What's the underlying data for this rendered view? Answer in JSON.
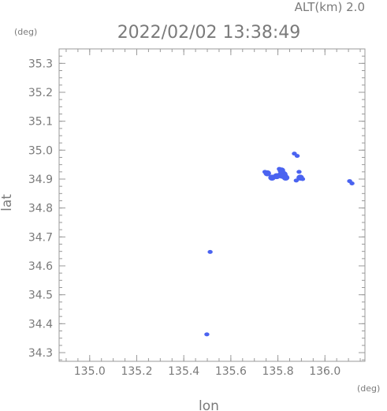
{
  "header": {
    "altitude_label": "ALT(km)  2.0",
    "datetime": "2022/02/02 13:38:49"
  },
  "chart_data": {
    "type": "scatter",
    "title": "2022/02/02 13:38:49",
    "xlabel": "lon",
    "ylabel": "lat",
    "x_unit": "(deg)",
    "y_unit": "(deg)",
    "xlim": [
      134.87,
      136.17
    ],
    "ylim": [
      34.27,
      35.35
    ],
    "x_ticks": [
      135.0,
      135.2,
      135.4,
      135.6,
      135.8,
      136.0
    ],
    "x_tick_labels": [
      "135.0",
      "135.2",
      "135.4",
      "135.6",
      "135.8",
      "136.0"
    ],
    "y_ticks": [
      34.3,
      34.4,
      34.5,
      34.6,
      34.7,
      34.8,
      34.9,
      35.0,
      35.1,
      35.2,
      35.3
    ],
    "y_tick_labels": [
      "34.3",
      "34.4",
      "34.5",
      "34.6",
      "34.7",
      "34.8",
      "34.9",
      "35.0",
      "35.1",
      "35.2",
      "35.3"
    ],
    "x_minor_step": 0.05,
    "y_minor_step": 0.025,
    "grid": false,
    "marker_color": "#4a63f0",
    "echoes": [
      {
        "lon": 135.82,
        "lat": 34.915,
        "size": 3
      },
      {
        "lon": 135.833,
        "lat": 34.905,
        "size": 2
      },
      {
        "lon": 135.815,
        "lat": 34.93,
        "size": 2
      },
      {
        "lon": 135.795,
        "lat": 34.91,
        "size": 2
      },
      {
        "lon": 135.775,
        "lat": 34.905,
        "size": 2
      },
      {
        "lon": 135.755,
        "lat": 34.92,
        "size": 2
      },
      {
        "lon": 135.745,
        "lat": 34.925,
        "size": 1
      },
      {
        "lon": 135.806,
        "lat": 34.935,
        "size": 1
      },
      {
        "lon": 135.89,
        "lat": 34.925,
        "size": 1
      },
      {
        "lon": 135.895,
        "lat": 34.905,
        "size": 2
      },
      {
        "lon": 135.878,
        "lat": 34.895,
        "size": 1
      },
      {
        "lon": 135.905,
        "lat": 34.9,
        "size": 1
      },
      {
        "lon": 135.882,
        "lat": 34.98,
        "size": 1
      },
      {
        "lon": 135.87,
        "lat": 34.988,
        "size": 1
      },
      {
        "lon": 136.105,
        "lat": 34.893,
        "size": 1
      },
      {
        "lon": 136.115,
        "lat": 34.885,
        "size": 1
      },
      {
        "lon": 135.512,
        "lat": 34.648,
        "size": 1
      },
      {
        "lon": 135.498,
        "lat": 34.363,
        "size": 1
      }
    ]
  }
}
